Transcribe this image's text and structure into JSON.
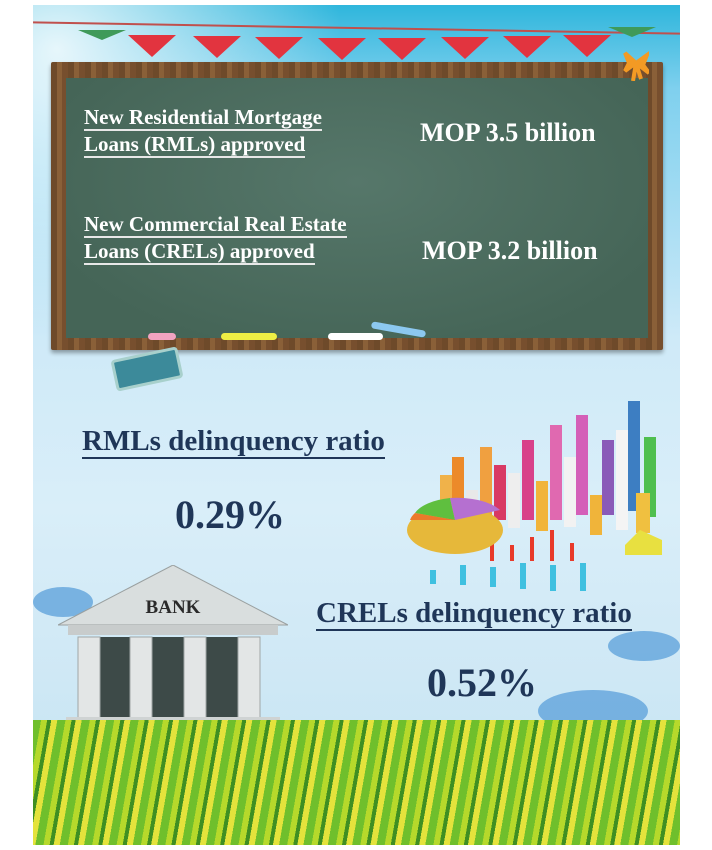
{
  "board": {
    "rml_label_line1": "New Residential Mortgage",
    "rml_label_line2": "Loans (RMLs) approved",
    "rml_value": "MOP 3.5 billion",
    "crel_label_line1": "New Commercial Real Estate",
    "crel_label_line2": "Loans (CRELs) approved",
    "crel_value": "MOP 3.2 billion"
  },
  "rml_delinquency": {
    "label": "RMLs delinquency ratio",
    "value": "0.29%"
  },
  "crel_delinquency": {
    "label": "CRELs delinquency ratio",
    "value": "0.52%"
  },
  "bank": {
    "sign": "BANK"
  },
  "colors": {
    "heading": "#1f3658",
    "chalkboard": "#4a6b5e",
    "frame": "#7a5230"
  }
}
